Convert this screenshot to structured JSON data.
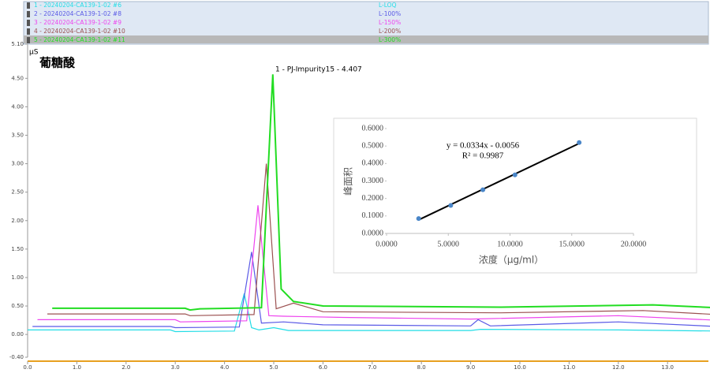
{
  "chart_data": [
    {
      "type": "line",
      "title": "葡糖酸",
      "y_unit": "µS",
      "annotation": "1 - PJ-Impurity15 - 4.407",
      "xlim": [
        0,
        14
      ],
      "ylim": [
        -0.4,
        5.1
      ],
      "xticks": [
        {
          "value": 0,
          "label": "0.0"
        },
        {
          "value": 1,
          "label": "1.0"
        },
        {
          "value": 2,
          "label": "2.0"
        },
        {
          "value": 3,
          "label": "3.0"
        },
        {
          "value": 4,
          "label": "4.0"
        },
        {
          "value": 5,
          "label": "5.0"
        },
        {
          "value": 6,
          "label": "6.0"
        },
        {
          "value": 7,
          "label": "7.0"
        },
        {
          "value": 8,
          "label": "8.0"
        },
        {
          "value": 9,
          "label": "9.0"
        },
        {
          "value": 10,
          "label": "10.0"
        },
        {
          "value": 11,
          "label": "11.0"
        },
        {
          "value": 12,
          "label": "12.0"
        },
        {
          "value": 13,
          "label": "13.0"
        }
      ],
      "yticks": [
        {
          "value": -0.4,
          "label": "-0.40"
        },
        {
          "value": 0,
          "label": "0.00"
        },
        {
          "value": 0.5,
          "label": "0.50"
        },
        {
          "value": 1,
          "label": "1.00"
        },
        {
          "value": 1.5,
          "label": "1.50"
        },
        {
          "value": 2,
          "label": "2.00"
        },
        {
          "value": 2.5,
          "label": "2.50"
        },
        {
          "value": 3,
          "label": "3.00"
        },
        {
          "value": 3.5,
          "label": "3.50"
        },
        {
          "value": 4,
          "label": "4.00"
        },
        {
          "value": 4.5,
          "label": "4.50"
        },
        {
          "value": 5.1,
          "label": "5.10"
        }
      ],
      "series": [
        {
          "name": "1 - 20240204-CA139-1-02 #6",
          "label": "L-LOQ",
          "color": "#22dde6",
          "x": [
            0,
            2.9,
            3.0,
            4.2,
            4.4,
            4.55,
            4.7,
            5.0,
            5.3,
            6.0,
            9.0,
            9.2,
            12.0,
            14.0
          ],
          "values": [
            0.08,
            0.08,
            0.05,
            0.06,
            0.72,
            0.12,
            0.08,
            0.12,
            0.07,
            0.07,
            0.07,
            0.09,
            0.08,
            0.06
          ]
        },
        {
          "name": "2 - 20240204-CA139-1-02 #8",
          "label": "L-100%",
          "color": "#5a5ae6",
          "x": [
            0.1,
            2.9,
            3.0,
            4.3,
            4.55,
            4.75,
            5.2,
            6.0,
            9.0,
            9.15,
            9.4,
            12.0,
            14.0
          ],
          "values": [
            0.14,
            0.14,
            0.12,
            0.13,
            1.45,
            0.2,
            0.22,
            0.17,
            0.15,
            0.26,
            0.15,
            0.22,
            0.14
          ]
        },
        {
          "name": "3 - 20240204-CA139-1-02 #9",
          "label": "L-150%",
          "color": "#ee44ee",
          "x": [
            0.2,
            3.0,
            3.1,
            4.45,
            4.68,
            4.9,
            5.2,
            6.4,
            9.0,
            12.0,
            14.0
          ],
          "values": [
            0.26,
            0.26,
            0.22,
            0.24,
            2.27,
            0.33,
            0.32,
            0.3,
            0.27,
            0.33,
            0.25
          ]
        },
        {
          "name": "4 - 20240204-CA139-1-02 #10",
          "label": "L-200%",
          "color": "#9b5050",
          "x": [
            0.4,
            3.2,
            3.3,
            4.6,
            4.85,
            5.05,
            5.4,
            6.0,
            9.6,
            12.5,
            14.0
          ],
          "values": [
            0.36,
            0.36,
            0.33,
            0.35,
            3.0,
            0.45,
            0.55,
            0.4,
            0.38,
            0.42,
            0.35
          ]
        },
        {
          "name": "5 - 20240204-CA139-1-02 #11",
          "label": "L-300%",
          "color": "#22dd22",
          "x": [
            0.5,
            3.2,
            3.3,
            3.5,
            4.75,
            4.98,
            5.15,
            5.4,
            6.0,
            9.6,
            12.7,
            14.0
          ],
          "values": [
            0.46,
            0.46,
            0.43,
            0.45,
            0.47,
            4.57,
            0.8,
            0.58,
            0.5,
            0.48,
            0.52,
            0.47
          ]
        }
      ]
    },
    {
      "type": "scatter",
      "xlabel": "浓度（μg/ml）",
      "ylabel": "峰面积",
      "equation": "y = 0.0334x - 0.0056",
      "r2": "R² = 0.9987",
      "color": "#4a86c8",
      "x": [
        2.6,
        5.2,
        7.8,
        10.4,
        15.6
      ],
      "values": [
        0.085,
        0.16,
        0.25,
        0.335,
        0.52
      ],
      "xlim": [
        0,
        20
      ],
      "ylim": [
        0,
        0.6
      ],
      "xticks": [
        {
          "value": 0,
          "label": "0.0000"
        },
        {
          "value": 5,
          "label": "5.0000"
        },
        {
          "value": 10,
          "label": "10.0000"
        },
        {
          "value": 15,
          "label": "15.0000"
        },
        {
          "value": 20,
          "label": "20.0000"
        }
      ],
      "yticks": [
        {
          "value": 0,
          "label": "0.0000"
        },
        {
          "value": 0.1,
          "label": "0.1000"
        },
        {
          "value": 0.2,
          "label": "0.2000"
        },
        {
          "value": 0.3,
          "label": "0.3000"
        },
        {
          "value": 0.4,
          "label": "0.4000"
        },
        {
          "value": 0.5,
          "label": "0.5000"
        },
        {
          "value": 0.6,
          "label": "0.6000"
        }
      ]
    }
  ]
}
